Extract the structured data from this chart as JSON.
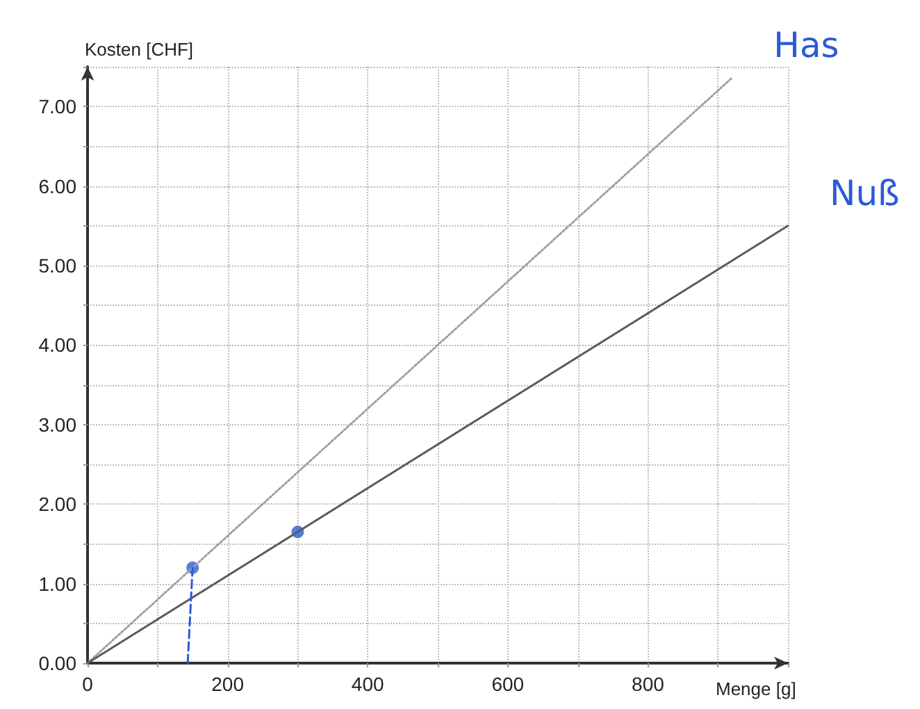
{
  "chart_data": {
    "type": "line",
    "xlabel": "Menge [g]",
    "ylabel": "Kosten [CHF]",
    "xlim": [
      0,
      1000
    ],
    "ylim": [
      0,
      7.5
    ],
    "xticks": [
      0,
      {
        "value": 100,
        "label": null
      },
      200,
      {
        "value": 300,
        "label": null
      },
      400,
      {
        "value": 500,
        "label": null
      },
      600,
      {
        "value": 700,
        "label": null
      },
      800,
      {
        "value": 900,
        "label": null
      },
      {
        "value": 1000,
        "label": null
      }
    ],
    "yticks": [
      {
        "value": 0,
        "label": "0.00"
      },
      {
        "value": 0.5,
        "label": null
      },
      {
        "value": 1,
        "label": "1.00"
      },
      {
        "value": 1.5,
        "label": null
      },
      {
        "value": 2,
        "label": "2.00"
      },
      {
        "value": 2.5,
        "label": null
      },
      {
        "value": 3,
        "label": "3.00"
      },
      {
        "value": 3.5,
        "label": null
      },
      {
        "value": 4,
        "label": "4.00"
      },
      {
        "value": 4.5,
        "label": null
      },
      {
        "value": 5,
        "label": "5.00"
      },
      {
        "value": 5.5,
        "label": null
      },
      {
        "value": 6,
        "label": "6.00"
      },
      {
        "value": 6.5,
        "label": null
      },
      {
        "value": 7,
        "label": "7.00"
      },
      {
        "value": 7.5,
        "label": null
      }
    ],
    "grid": true,
    "annotations": [
      {
        "text": "Has",
        "x": 920,
        "y": 7.36
      },
      {
        "text": "Nuß",
        "x": 1000,
        "y": 5.5
      }
    ],
    "series": [
      {
        "type": "line",
        "color": "#a0a0a0",
        "line_style": "dotted",
        "marker": "none",
        "x": [
          0,
          920
        ],
        "values": [
          0,
          7.36
        ]
      },
      {
        "type": "line",
        "color": "#5a5a5a",
        "line_style": "solid",
        "marker": "none",
        "x": [
          0,
          1000
        ],
        "values": [
          0,
          5.5
        ]
      },
      {
        "type": "scatter",
        "color": "#2a5bd7",
        "marker": "circle",
        "x": [
          150,
          300
        ],
        "values": [
          1.2,
          1.65
        ]
      },
      {
        "type": "line",
        "color": "#2a5bd7",
        "line_style": "dashed",
        "marker": "none",
        "x": [
          143,
          150
        ],
        "values": [
          0,
          1.2
        ]
      }
    ]
  }
}
